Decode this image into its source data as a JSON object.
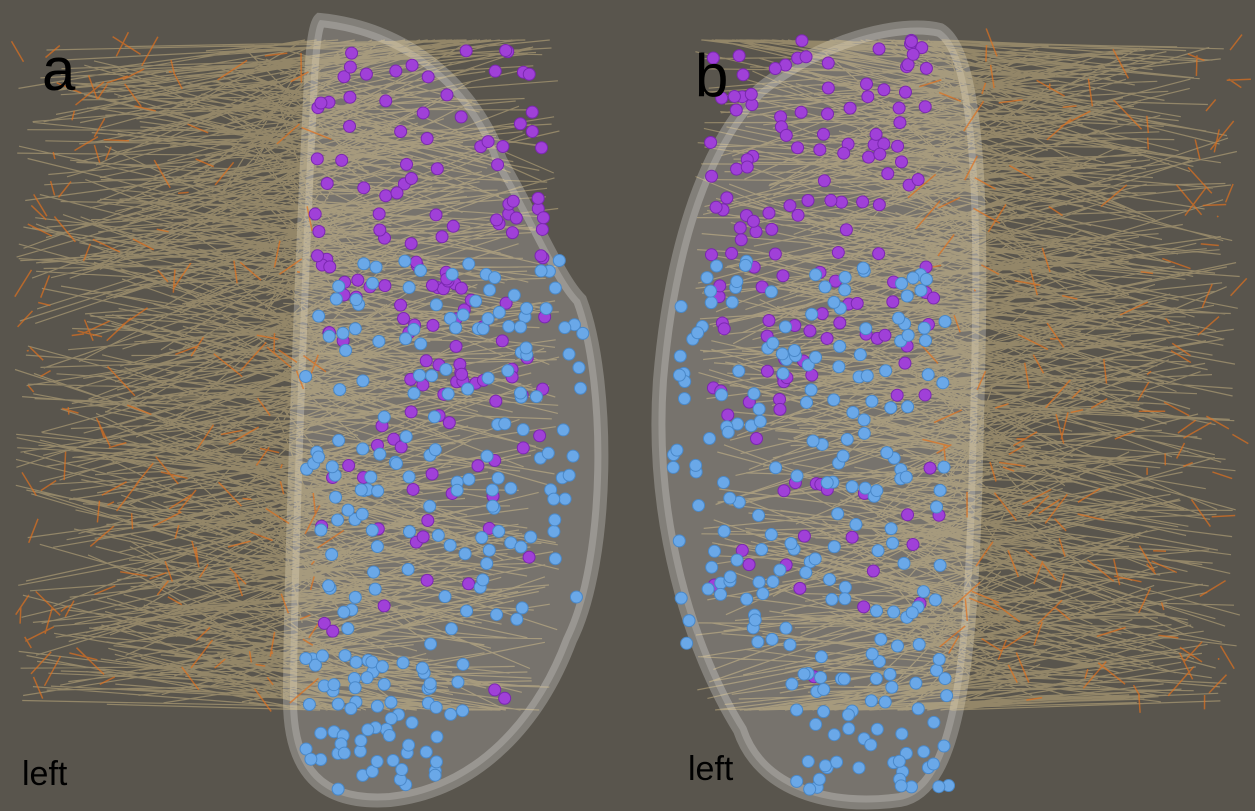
{
  "panels": [
    {
      "label": "a",
      "caption": "left"
    },
    {
      "label": "b",
      "caption": "left"
    }
  ]
}
